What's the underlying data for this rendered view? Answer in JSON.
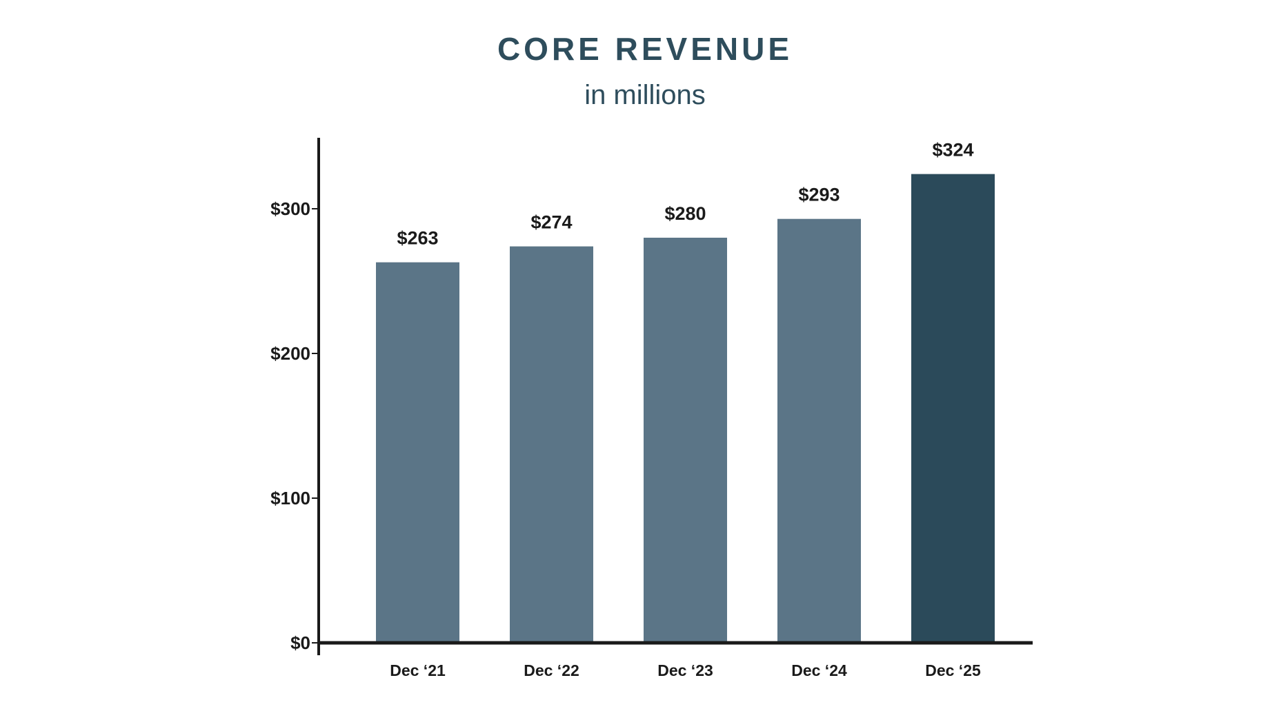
{
  "chart_data": {
    "type": "bar",
    "title": "CORE REVENUE",
    "subtitle": "in millions",
    "categories": [
      "Dec ‘21",
      "Dec ‘22",
      "Dec ‘23",
      "Dec ‘24",
      "Dec ‘25"
    ],
    "values": [
      263,
      274,
      280,
      293,
      324
    ],
    "data_labels": [
      "$263",
      "$274",
      "$280",
      "$293",
      "$324"
    ],
    "yticks": [
      0,
      100,
      200,
      300
    ],
    "ytick_labels": [
      "$0",
      "$100",
      "$200",
      "$300"
    ],
    "ylim": [
      0,
      350
    ],
    "grid": false,
    "colors": {
      "bar": "#5b7587",
      "highlight_bar": "#2b4a5a",
      "title": "#2e4d5c",
      "axis": "#1a1a1a"
    },
    "highlight_index": 4
  }
}
